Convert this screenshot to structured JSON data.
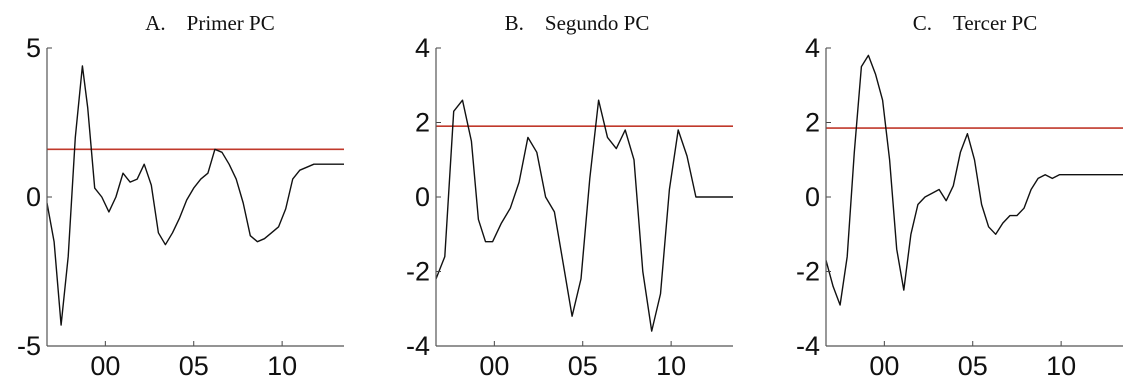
{
  "chart_data": [
    {
      "type": "line",
      "title": "A.    Primer PC",
      "xlabel": "",
      "ylabel": "",
      "ylim": [
        -5,
        5
      ],
      "xlim": [
        -3.3,
        13.5
      ],
      "yticks": [
        5,
        0,
        -5
      ],
      "ytick_labels": [
        "5",
        "0",
        "-5"
      ],
      "xticks": [
        0,
        5,
        10
      ],
      "xtick_labels": [
        "00",
        "05",
        "10"
      ],
      "threshold": 1.6,
      "threshold_color": "#c0392b",
      "line_color": "#111111",
      "grid": false,
      "x": [
        -3.3,
        -2.9,
        -2.5,
        -2.1,
        -1.7,
        -1.3,
        -1.0,
        -0.6,
        -0.2,
        0.2,
        0.6,
        1.0,
        1.4,
        1.8,
        2.2,
        2.6,
        3.0,
        3.4,
        3.8,
        4.2,
        4.6,
        5.0,
        5.4,
        5.8,
        6.2,
        6.6,
        7.0,
        7.4,
        7.8,
        8.2,
        8.6,
        9.0,
        9.4,
        9.8,
        10.2,
        10.6,
        11.0,
        11.4,
        11.8,
        12.2,
        12.6,
        13.0,
        13.5
      ],
      "y": [
        -0.2,
        -1.5,
        -4.3,
        -2.0,
        2.0,
        4.4,
        3.0,
        0.3,
        0.0,
        -0.5,
        0.0,
        0.8,
        0.5,
        0.6,
        1.1,
        0.4,
        -1.2,
        -1.6,
        -1.2,
        -0.7,
        -0.1,
        0.3,
        0.6,
        0.8,
        1.6,
        1.5,
        1.1,
        0.6,
        -0.2,
        -1.3,
        -1.5,
        -1.4,
        -1.2,
        -1.0,
        -0.4,
        0.6,
        0.9,
        1.0,
        1.1,
        1.1,
        1.1,
        1.1,
        1.1
      ]
    },
    {
      "type": "line",
      "title": "B.    Segundo PC",
      "xlabel": "",
      "ylabel": "",
      "ylim": [
        -4,
        4
      ],
      "xlim": [
        -3.3,
        13.5
      ],
      "yticks": [
        4,
        2,
        0,
        -2,
        -4
      ],
      "ytick_labels": [
        "4",
        "2",
        "0",
        "-2",
        "-4"
      ],
      "xticks": [
        0,
        5,
        10
      ],
      "xtick_labels": [
        "00",
        "05",
        "10"
      ],
      "threshold": 1.9,
      "threshold_color": "#c0392b",
      "line_color": "#111111",
      "grid": false,
      "x": [
        -3.3,
        -2.8,
        -2.3,
        -1.8,
        -1.3,
        -0.9,
        -0.5,
        -0.1,
        0.4,
        0.9,
        1.4,
        1.9,
        2.4,
        2.9,
        3.4,
        3.9,
        4.4,
        4.9,
        5.4,
        5.9,
        6.4,
        6.9,
        7.4,
        7.9,
        8.4,
        8.9,
        9.4,
        9.9,
        10.4,
        10.9,
        11.4,
        11.9,
        12.4,
        12.9,
        13.5
      ],
      "y": [
        -2.2,
        -1.6,
        2.3,
        2.6,
        1.5,
        -0.6,
        -1.2,
        -1.2,
        -0.7,
        -0.3,
        0.4,
        1.6,
        1.2,
        0.0,
        -0.4,
        -1.8,
        -3.2,
        -2.2,
        0.5,
        2.6,
        1.6,
        1.3,
        1.8,
        1.0,
        -2.0,
        -3.6,
        -2.6,
        0.2,
        1.8,
        1.1,
        0.0,
        0.0,
        0.0,
        0.0,
        0.0
      ]
    },
    {
      "type": "line",
      "title": "C.    Tercer PC",
      "xlabel": "",
      "ylabel": "",
      "ylim": [
        -4,
        4
      ],
      "xlim": [
        -3.3,
        13.5
      ],
      "yticks": [
        4,
        2,
        0,
        -2,
        -4
      ],
      "ytick_labels": [
        "4",
        "2",
        "0",
        "-2",
        "-4"
      ],
      "xticks": [
        0,
        5,
        10
      ],
      "xtick_labels": [
        "00",
        "05",
        "10"
      ],
      "threshold": 1.85,
      "threshold_color": "#c0392b",
      "line_color": "#111111",
      "grid": false,
      "x": [
        -3.3,
        -2.9,
        -2.5,
        -2.1,
        -1.7,
        -1.3,
        -0.9,
        -0.5,
        -0.1,
        0.3,
        0.7,
        1.1,
        1.5,
        1.9,
        2.3,
        2.7,
        3.1,
        3.5,
        3.9,
        4.3,
        4.7,
        5.1,
        5.5,
        5.9,
        6.3,
        6.7,
        7.1,
        7.5,
        7.9,
        8.3,
        8.7,
        9.1,
        9.5,
        9.9,
        10.3,
        10.7,
        11.1,
        11.5,
        11.9,
        12.3,
        12.7,
        13.1,
        13.5
      ],
      "y": [
        -1.7,
        -2.4,
        -2.9,
        -1.6,
        1.2,
        3.5,
        3.8,
        3.3,
        2.6,
        1.0,
        -1.4,
        -2.5,
        -1.0,
        -0.2,
        0.0,
        0.1,
        0.2,
        -0.1,
        0.3,
        1.2,
        1.7,
        1.0,
        -0.2,
        -0.8,
        -1.0,
        -0.7,
        -0.5,
        -0.5,
        -0.3,
        0.2,
        0.5,
        0.6,
        0.5,
        0.6,
        0.6,
        0.6,
        0.6,
        0.6,
        0.6,
        0.6,
        0.6,
        0.6,
        0.6
      ]
    }
  ]
}
